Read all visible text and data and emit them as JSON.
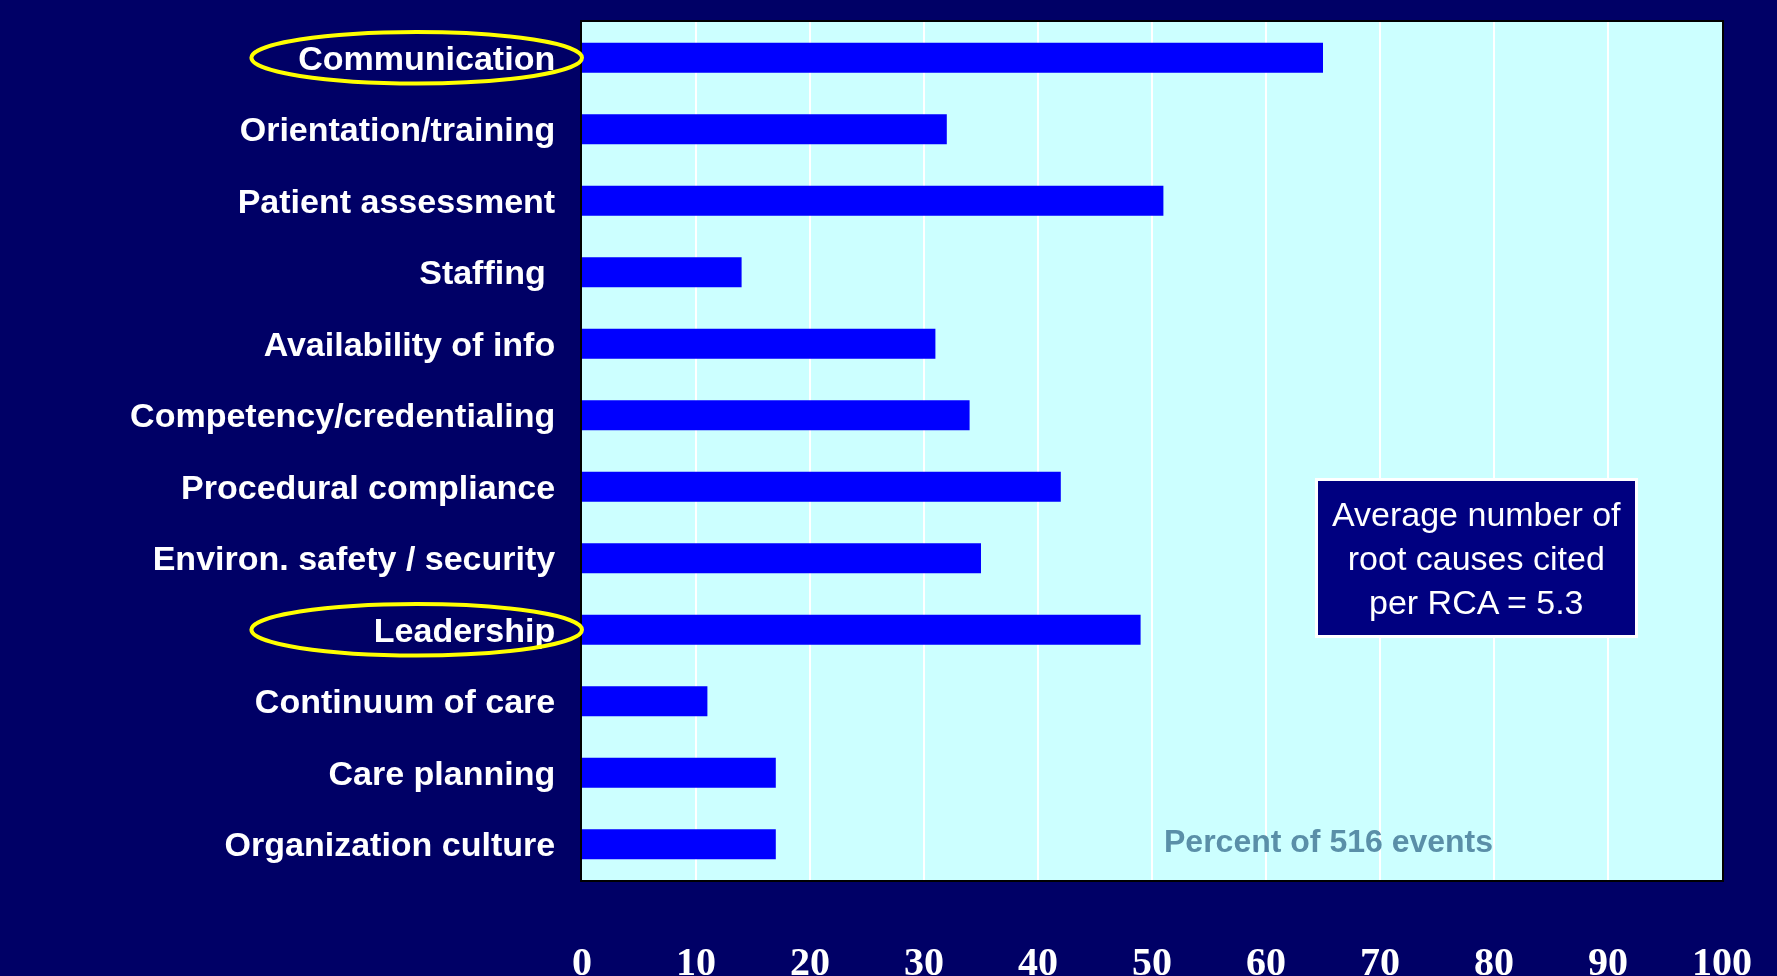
{
  "chart_data": {
    "type": "bar",
    "orientation": "horizontal",
    "categories": [
      "Communication",
      "Orientation/training",
      "Patient assessment",
      "Staffing ",
      "Availability of info",
      "Competency/credentialing",
      "Procedural compliance",
      "Environ. safety / security",
      "Leadership",
      "Continuum of care",
      "Care planning",
      "Organization culture"
    ],
    "values": [
      65,
      32,
      51,
      14,
      31,
      34,
      42,
      35,
      49,
      11,
      17,
      17
    ],
    "color": "#0000ff",
    "xlim": [
      0,
      100
    ],
    "xticks": [
      0,
      10,
      20,
      30,
      40,
      50,
      60,
      70,
      80,
      90,
      100
    ],
    "grid": "x",
    "annotations": [
      "Percent of 516 events",
      "Average number of\nroot causes cited\nper RCA = 5.3"
    ]
  }
}
